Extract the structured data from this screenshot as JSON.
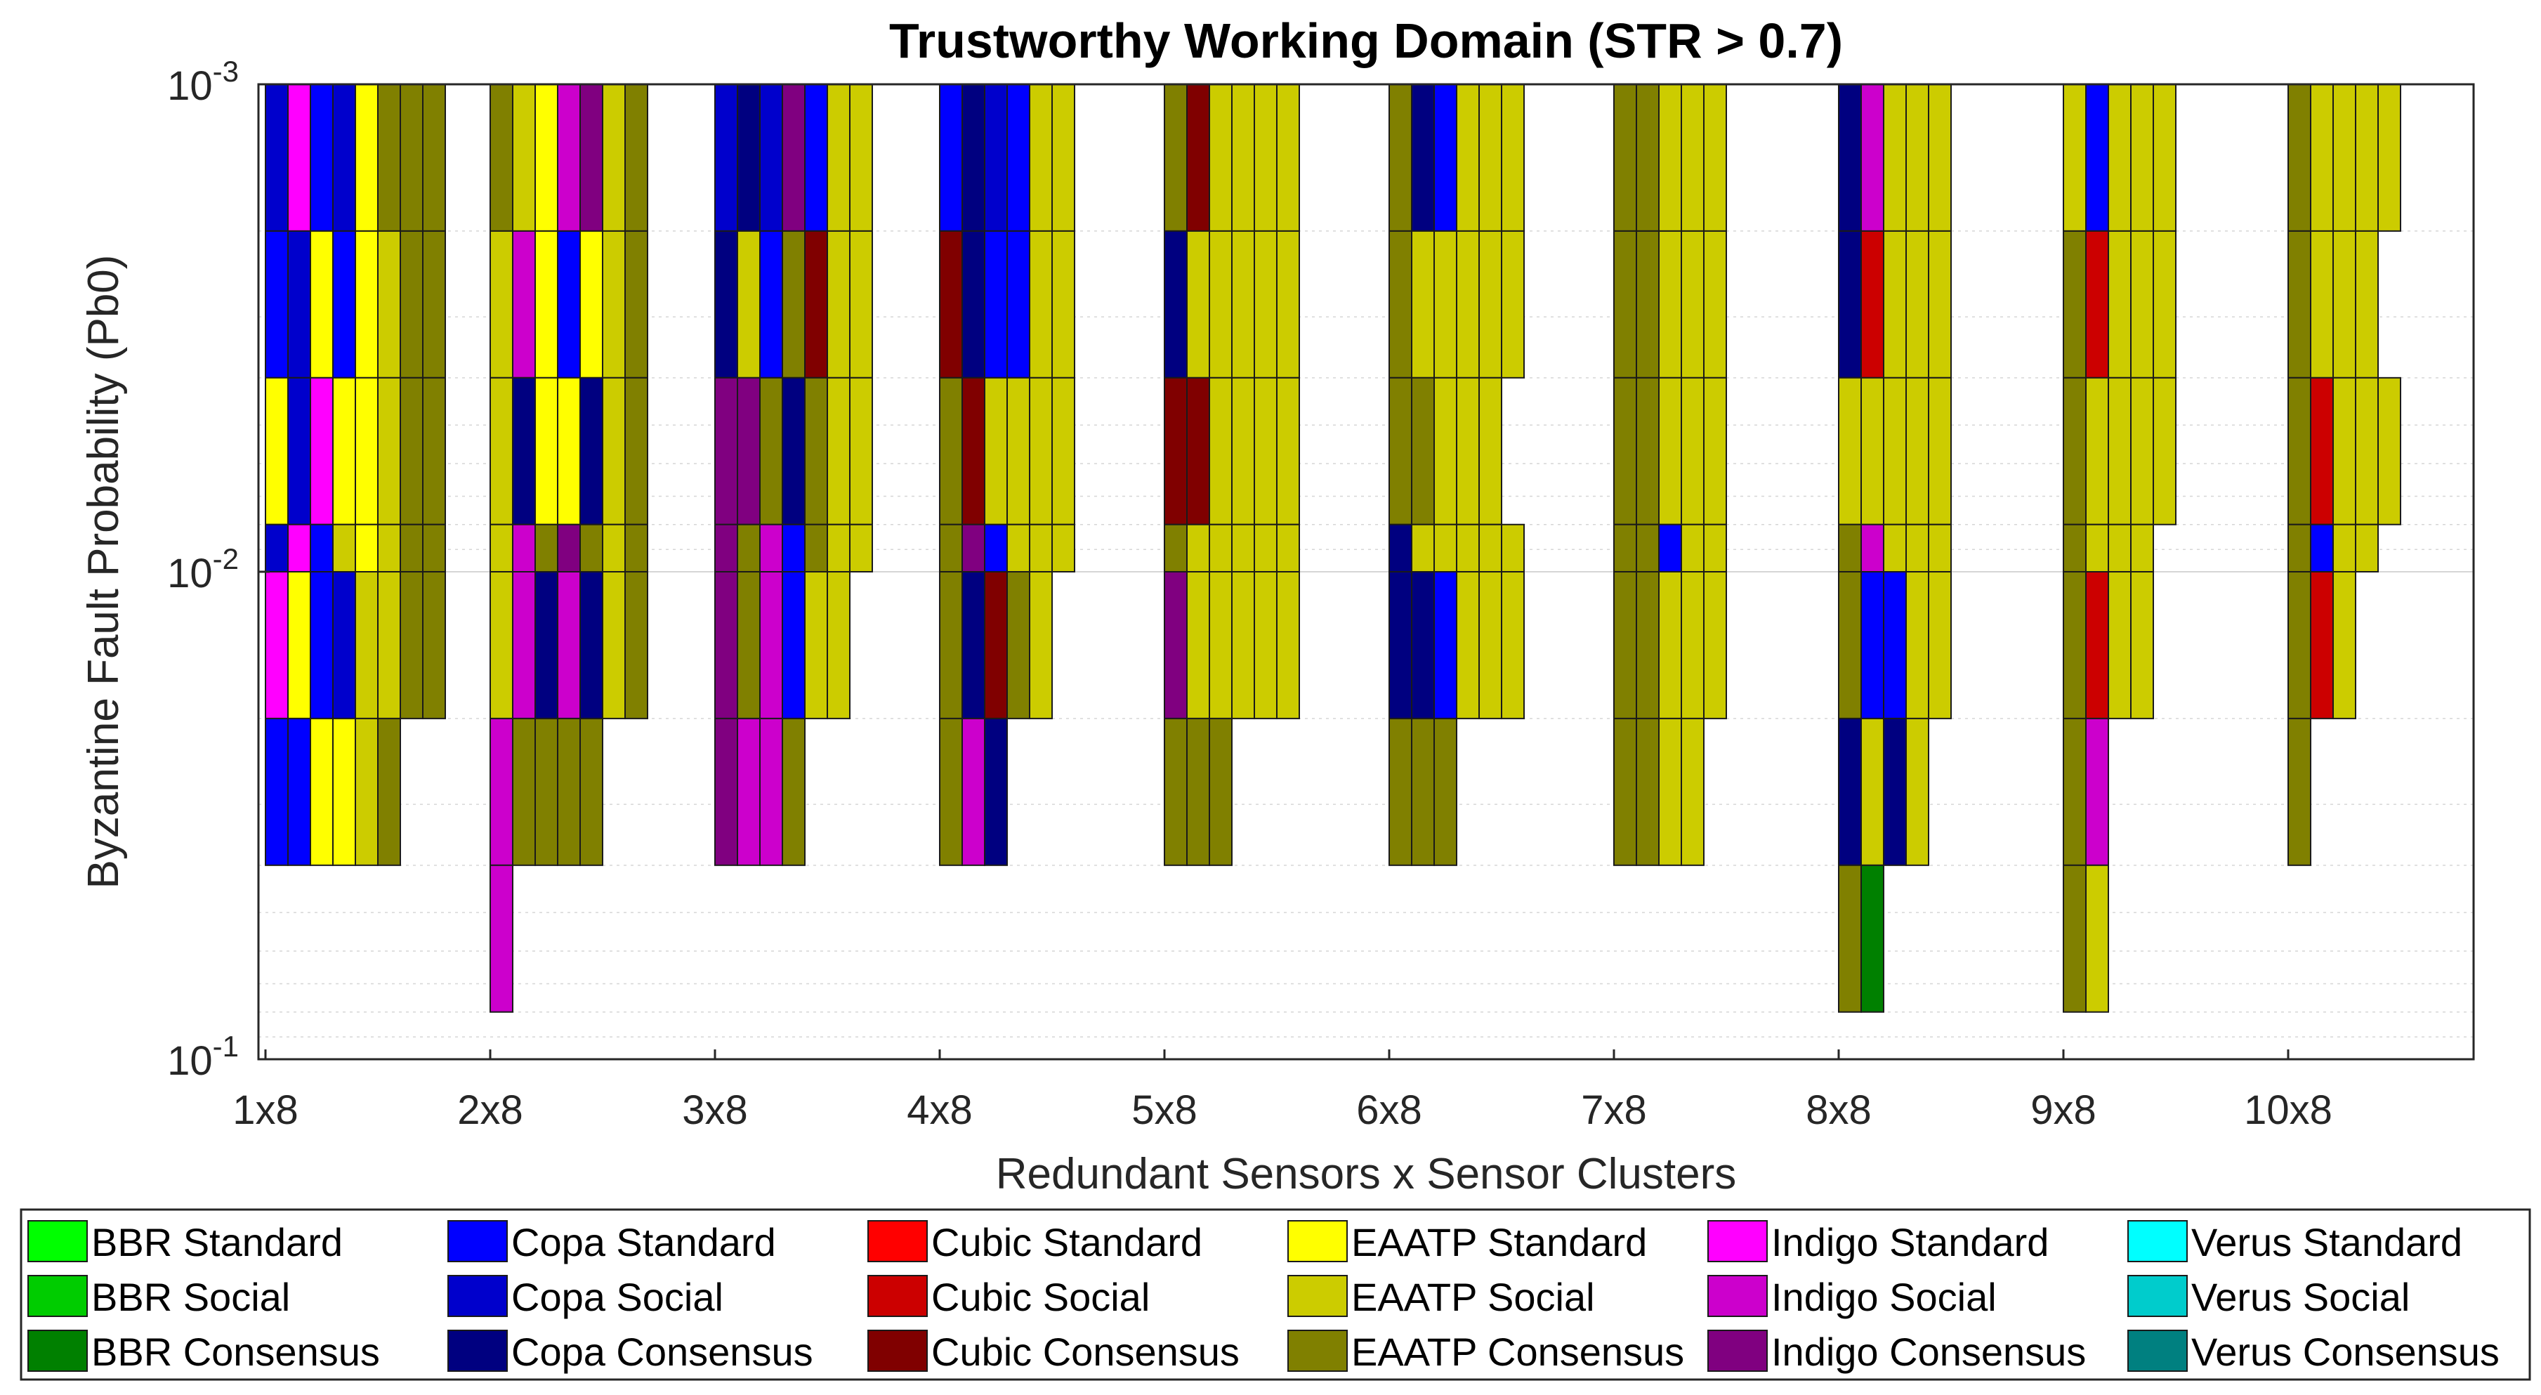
{
  "chart_data": {
    "type": "stacked-tile",
    "title": "Trustworthy Working Domain (STR > 0.7)",
    "xlabel": "Redundant Sensors x Sensor Clusters",
    "ylabel": "Byzantine Fault Probability (Pb0)",
    "y_scale": "log",
    "y_direction": "reversed",
    "ylim": [
      0.001,
      0.1
    ],
    "y_ticks": [
      {
        "base": "10",
        "exp": "-3",
        "value": 0.001
      },
      {
        "base": "10",
        "exp": "-2",
        "value": 0.01
      },
      {
        "base": "10",
        "exp": "-1",
        "value": 0.1
      }
    ],
    "grid": true,
    "categories": [
      "1x8",
      "2x8",
      "3x8",
      "4x8",
      "5x8",
      "6x8",
      "7x8",
      "8x8",
      "9x8",
      "10x8"
    ],
    "pb_levels": [
      0.001,
      0.002,
      0.004,
      0.008,
      0.01,
      0.02,
      0.04,
      0.08,
      0.1
    ],
    "legend": [
      {
        "key": "BBR-Std",
        "label": "BBR Standard",
        "color": "#00FF00"
      },
      {
        "key": "BBR-Soc",
        "label": "BBR Social",
        "color": "#00CC00"
      },
      {
        "key": "BBR-Con",
        "label": "BBR Consensus",
        "color": "#008000"
      },
      {
        "key": "Copa-Std",
        "label": "Copa Standard",
        "color": "#0000FF"
      },
      {
        "key": "Copa-Soc",
        "label": "Copa Social",
        "color": "#0000CC"
      },
      {
        "key": "Copa-Con",
        "label": "Copa Consensus",
        "color": "#000080"
      },
      {
        "key": "Cubic-Std",
        "label": "Cubic Standard",
        "color": "#FF0000"
      },
      {
        "key": "Cubic-Soc",
        "label": "Cubic Social",
        "color": "#CC0000"
      },
      {
        "key": "Cubic-Con",
        "label": "Cubic Consensus",
        "color": "#800000"
      },
      {
        "key": "EAATP-Std",
        "label": "EAATP Standard",
        "color": "#FFFF00"
      },
      {
        "key": "EAATP-Soc",
        "label": "EAATP Social",
        "color": "#CCCC00"
      },
      {
        "key": "EAATP-Con",
        "label": "EAATP Consensus",
        "color": "#808000"
      },
      {
        "key": "Indigo-Std",
        "label": "Indigo Standard",
        "color": "#FF00FF"
      },
      {
        "key": "Indigo-Soc",
        "label": "Indigo Social",
        "color": "#CC00CC"
      },
      {
        "key": "Indigo-Con",
        "label": "Indigo Consensus",
        "color": "#800080"
      },
      {
        "key": "Verus-Std",
        "label": "Verus Standard",
        "color": "#00FFFF"
      },
      {
        "key": "Verus-Soc",
        "label": "Verus Social",
        "color": "#00CCCC"
      },
      {
        "key": "Verus-Con",
        "label": "Verus Consensus",
        "color": "#008080"
      }
    ],
    "stacks": [
      {
        "category": "1x8",
        "pb_bands": [
          [
            "Copa-Soc",
            "Indigo-Std",
            "Copa-Std",
            "Copa-Soc",
            "EAATP-Std",
            "EAATP-Con",
            "EAATP-Con",
            "EAATP-Con"
          ],
          [
            "Copa-Std",
            "Copa-Soc",
            "EAATP-Std",
            "Copa-Std",
            "EAATP-Std",
            "EAATP-Soc",
            "EAATP-Con",
            "EAATP-Con"
          ],
          [
            "EAATP-Std",
            "Copa-Soc",
            "Indigo-Std",
            "EAATP-Std",
            "EAATP-Std",
            "EAATP-Soc",
            "EAATP-Con",
            "EAATP-Con"
          ],
          [
            "Copa-Soc",
            "Indigo-Std",
            "Copa-Std",
            "EAATP-Soc",
            "EAATP-Std",
            "EAATP-Soc",
            "EAATP-Con",
            "EAATP-Con"
          ],
          [
            "Indigo-Std",
            "EAATP-Std",
            "Copa-Std",
            "Copa-Soc",
            "EAATP-Soc",
            "EAATP-Soc",
            "EAATP-Con",
            "EAATP-Con"
          ],
          [
            "Copa-Std",
            "Copa-Std",
            "EAATP-Std",
            "EAATP-Std",
            "EAATP-Soc",
            "EAATP-Con"
          ]
        ]
      },
      {
        "category": "2x8",
        "pb_bands": [
          [
            "EAATP-Con",
            "EAATP-Soc",
            "EAATP-Std",
            "Indigo-Soc",
            "Indigo-Con",
            "EAATP-Soc",
            "EAATP-Con"
          ],
          [
            "EAATP-Soc",
            "Indigo-Soc",
            "EAATP-Std",
            "Copa-Std",
            "EAATP-Std",
            "EAATP-Soc",
            "EAATP-Con"
          ],
          [
            "EAATP-Soc",
            "Copa-Con",
            "EAATP-Std",
            "EAATP-Std",
            "Copa-Con",
            "EAATP-Soc",
            "EAATP-Con"
          ],
          [
            "EAATP-Soc",
            "Indigo-Soc",
            "EAATP-Con",
            "Indigo-Con",
            "EAATP-Con",
            "EAATP-Soc",
            "EAATP-Con"
          ],
          [
            "EAATP-Soc",
            "Indigo-Soc",
            "Copa-Con",
            "Indigo-Soc",
            "Copa-Con",
            "EAATP-Soc",
            "EAATP-Con"
          ],
          [
            "Indigo-Soc",
            "EAATP-Con",
            "EAATP-Con",
            "EAATP-Con",
            "EAATP-Con"
          ],
          [
            "Indigo-Soc"
          ]
        ]
      },
      {
        "category": "3x8",
        "pb_bands": [
          [
            "Copa-Soc",
            "Copa-Con",
            "Copa-Soc",
            "Indigo-Con",
            "Copa-Std",
            "EAATP-Soc",
            "EAATP-Soc"
          ],
          [
            "Copa-Con",
            "EAATP-Soc",
            "Copa-Std",
            "EAATP-Con",
            "Cubic-Con",
            "EAATP-Soc",
            "EAATP-Soc"
          ],
          [
            "Indigo-Con",
            "Indigo-Con",
            "EAATP-Con",
            "Copa-Con",
            "EAATP-Con",
            "EAATP-Soc",
            "EAATP-Soc"
          ],
          [
            "Indigo-Con",
            "EAATP-Con",
            "Indigo-Soc",
            "Copa-Std",
            "EAATP-Con",
            "EAATP-Soc",
            "EAATP-Soc"
          ],
          [
            "Indigo-Con",
            "EAATP-Con",
            "Indigo-Soc",
            "Copa-Std",
            "EAATP-Soc",
            "EAATP-Soc"
          ],
          [
            "Indigo-Con",
            "Indigo-Soc",
            "Indigo-Soc",
            "EAATP-Con"
          ]
        ]
      },
      {
        "category": "4x8",
        "pb_bands": [
          [
            "Copa-Std",
            "Copa-Con",
            "Copa-Soc",
            "Copa-Std",
            "EAATP-Soc",
            "EAATP-Soc"
          ],
          [
            "Cubic-Con",
            "Copa-Con",
            "Copa-Std",
            "Copa-Std",
            "EAATP-Soc",
            "EAATP-Soc"
          ],
          [
            "EAATP-Con",
            "Cubic-Con",
            "EAATP-Soc",
            "EAATP-Soc",
            "EAATP-Soc",
            "EAATP-Soc"
          ],
          [
            "EAATP-Con",
            "Indigo-Con",
            "Copa-Std",
            "EAATP-Soc",
            "EAATP-Soc",
            "EAATP-Soc"
          ],
          [
            "EAATP-Con",
            "Copa-Con",
            "Cubic-Con",
            "EAATP-Con",
            "EAATP-Soc"
          ],
          [
            "EAATP-Con",
            "Indigo-Soc",
            "Copa-Con"
          ]
        ]
      },
      {
        "category": "5x8",
        "pb_bands": [
          [
            "EAATP-Con",
            "Cubic-Con",
            "EAATP-Soc",
            "EAATP-Soc",
            "EAATP-Soc",
            "EAATP-Soc"
          ],
          [
            "Copa-Con",
            "EAATP-Soc",
            "EAATP-Soc",
            "EAATP-Soc",
            "EAATP-Soc",
            "EAATP-Soc"
          ],
          [
            "Cubic-Con",
            "Cubic-Con",
            "EAATP-Soc",
            "EAATP-Soc",
            "EAATP-Soc",
            "EAATP-Soc"
          ],
          [
            "EAATP-Con",
            "EAATP-Soc",
            "EAATP-Soc",
            "EAATP-Soc",
            "EAATP-Soc",
            "EAATP-Soc"
          ],
          [
            "Indigo-Con",
            "EAATP-Soc",
            "EAATP-Soc",
            "EAATP-Soc",
            "EAATP-Soc",
            "EAATP-Soc"
          ],
          [
            "EAATP-Con",
            "EAATP-Con",
            "EAATP-Con"
          ]
        ]
      },
      {
        "category": "6x8",
        "pb_bands": [
          [
            "EAATP-Con",
            "Copa-Con",
            "Copa-Std",
            "EAATP-Soc",
            "EAATP-Soc",
            "EAATP-Soc"
          ],
          [
            "EAATP-Con",
            "EAATP-Soc",
            "EAATP-Soc",
            "EAATP-Soc",
            "EAATP-Soc",
            "EAATP-Soc"
          ],
          [
            "EAATP-Con",
            "EAATP-Con",
            "EAATP-Soc",
            "EAATP-Soc",
            "EAATP-Soc"
          ],
          [
            "Copa-Con",
            "EAATP-Soc",
            "EAATP-Soc",
            "EAATP-Soc",
            "EAATP-Soc",
            "EAATP-Soc"
          ],
          [
            "Copa-Con",
            "Copa-Con",
            "Copa-Std",
            "EAATP-Soc",
            "EAATP-Soc",
            "EAATP-Soc"
          ],
          [
            "EAATP-Con",
            "EAATP-Con",
            "EAATP-Con"
          ]
        ]
      },
      {
        "category": "7x8",
        "pb_bands": [
          [
            "EAATP-Con",
            "EAATP-Con",
            "EAATP-Soc",
            "EAATP-Soc",
            "EAATP-Soc"
          ],
          [
            "EAATP-Con",
            "EAATP-Con",
            "EAATP-Soc",
            "EAATP-Soc",
            "EAATP-Soc"
          ],
          [
            "EAATP-Con",
            "EAATP-Con",
            "EAATP-Soc",
            "EAATP-Soc",
            "EAATP-Soc"
          ],
          [
            "EAATP-Con",
            "EAATP-Con",
            "Copa-Std",
            "EAATP-Soc",
            "EAATP-Soc"
          ],
          [
            "EAATP-Con",
            "EAATP-Con",
            "EAATP-Soc",
            "EAATP-Soc",
            "EAATP-Soc"
          ],
          [
            "EAATP-Con",
            "EAATP-Con",
            "EAATP-Soc",
            "EAATP-Soc"
          ]
        ]
      },
      {
        "category": "8x8",
        "pb_bands": [
          [
            "Copa-Con",
            "Indigo-Soc",
            "EAATP-Soc",
            "EAATP-Soc",
            "EAATP-Soc"
          ],
          [
            "Copa-Con",
            "Cubic-Soc",
            "EAATP-Soc",
            "EAATP-Soc",
            "EAATP-Soc"
          ],
          [
            "EAATP-Soc",
            "EAATP-Soc",
            "EAATP-Soc",
            "EAATP-Soc",
            "EAATP-Soc"
          ],
          [
            "EAATP-Con",
            "Indigo-Soc",
            "EAATP-Soc",
            "EAATP-Soc",
            "EAATP-Soc"
          ],
          [
            "EAATP-Con",
            "Copa-Std",
            "Copa-Std",
            "EAATP-Soc",
            "EAATP-Soc"
          ],
          [
            "Copa-Con",
            "EAATP-Soc",
            "Copa-Con",
            "EAATP-Soc"
          ],
          [
            "EAATP-Con",
            "BBR-Con"
          ]
        ]
      },
      {
        "category": "9x8",
        "pb_bands": [
          [
            "EAATP-Soc",
            "Copa-Std",
            "EAATP-Soc",
            "EAATP-Soc",
            "EAATP-Soc"
          ],
          [
            "EAATP-Con",
            "Cubic-Soc",
            "EAATP-Soc",
            "EAATP-Soc",
            "EAATP-Soc"
          ],
          [
            "EAATP-Con",
            "EAATP-Soc",
            "EAATP-Soc",
            "EAATP-Soc",
            "EAATP-Soc"
          ],
          [
            "EAATP-Con",
            "EAATP-Soc",
            "EAATP-Soc",
            "EAATP-Soc"
          ],
          [
            "EAATP-Con",
            "Cubic-Soc",
            "EAATP-Soc",
            "EAATP-Soc"
          ],
          [
            "EAATP-Con",
            "Indigo-Soc"
          ],
          [
            "EAATP-Con",
            "EAATP-Soc"
          ]
        ]
      },
      {
        "category": "10x8",
        "pb_bands": [
          [
            "EAATP-Con",
            "EAATP-Soc",
            "EAATP-Soc",
            "EAATP-Soc",
            "EAATP-Soc"
          ],
          [
            "EAATP-Con",
            "EAATP-Soc",
            "EAATP-Soc",
            "EAATP-Soc"
          ],
          [
            "EAATP-Con",
            "Cubic-Soc",
            "EAATP-Soc",
            "EAATP-Soc",
            "EAATP-Soc"
          ],
          [
            "EAATP-Con",
            "Copa-Std",
            "EAATP-Soc",
            "EAATP-Soc"
          ],
          [
            "EAATP-Con",
            "Cubic-Soc",
            "EAATP-Soc"
          ],
          [
            "EAATP-Con"
          ]
        ]
      }
    ]
  }
}
